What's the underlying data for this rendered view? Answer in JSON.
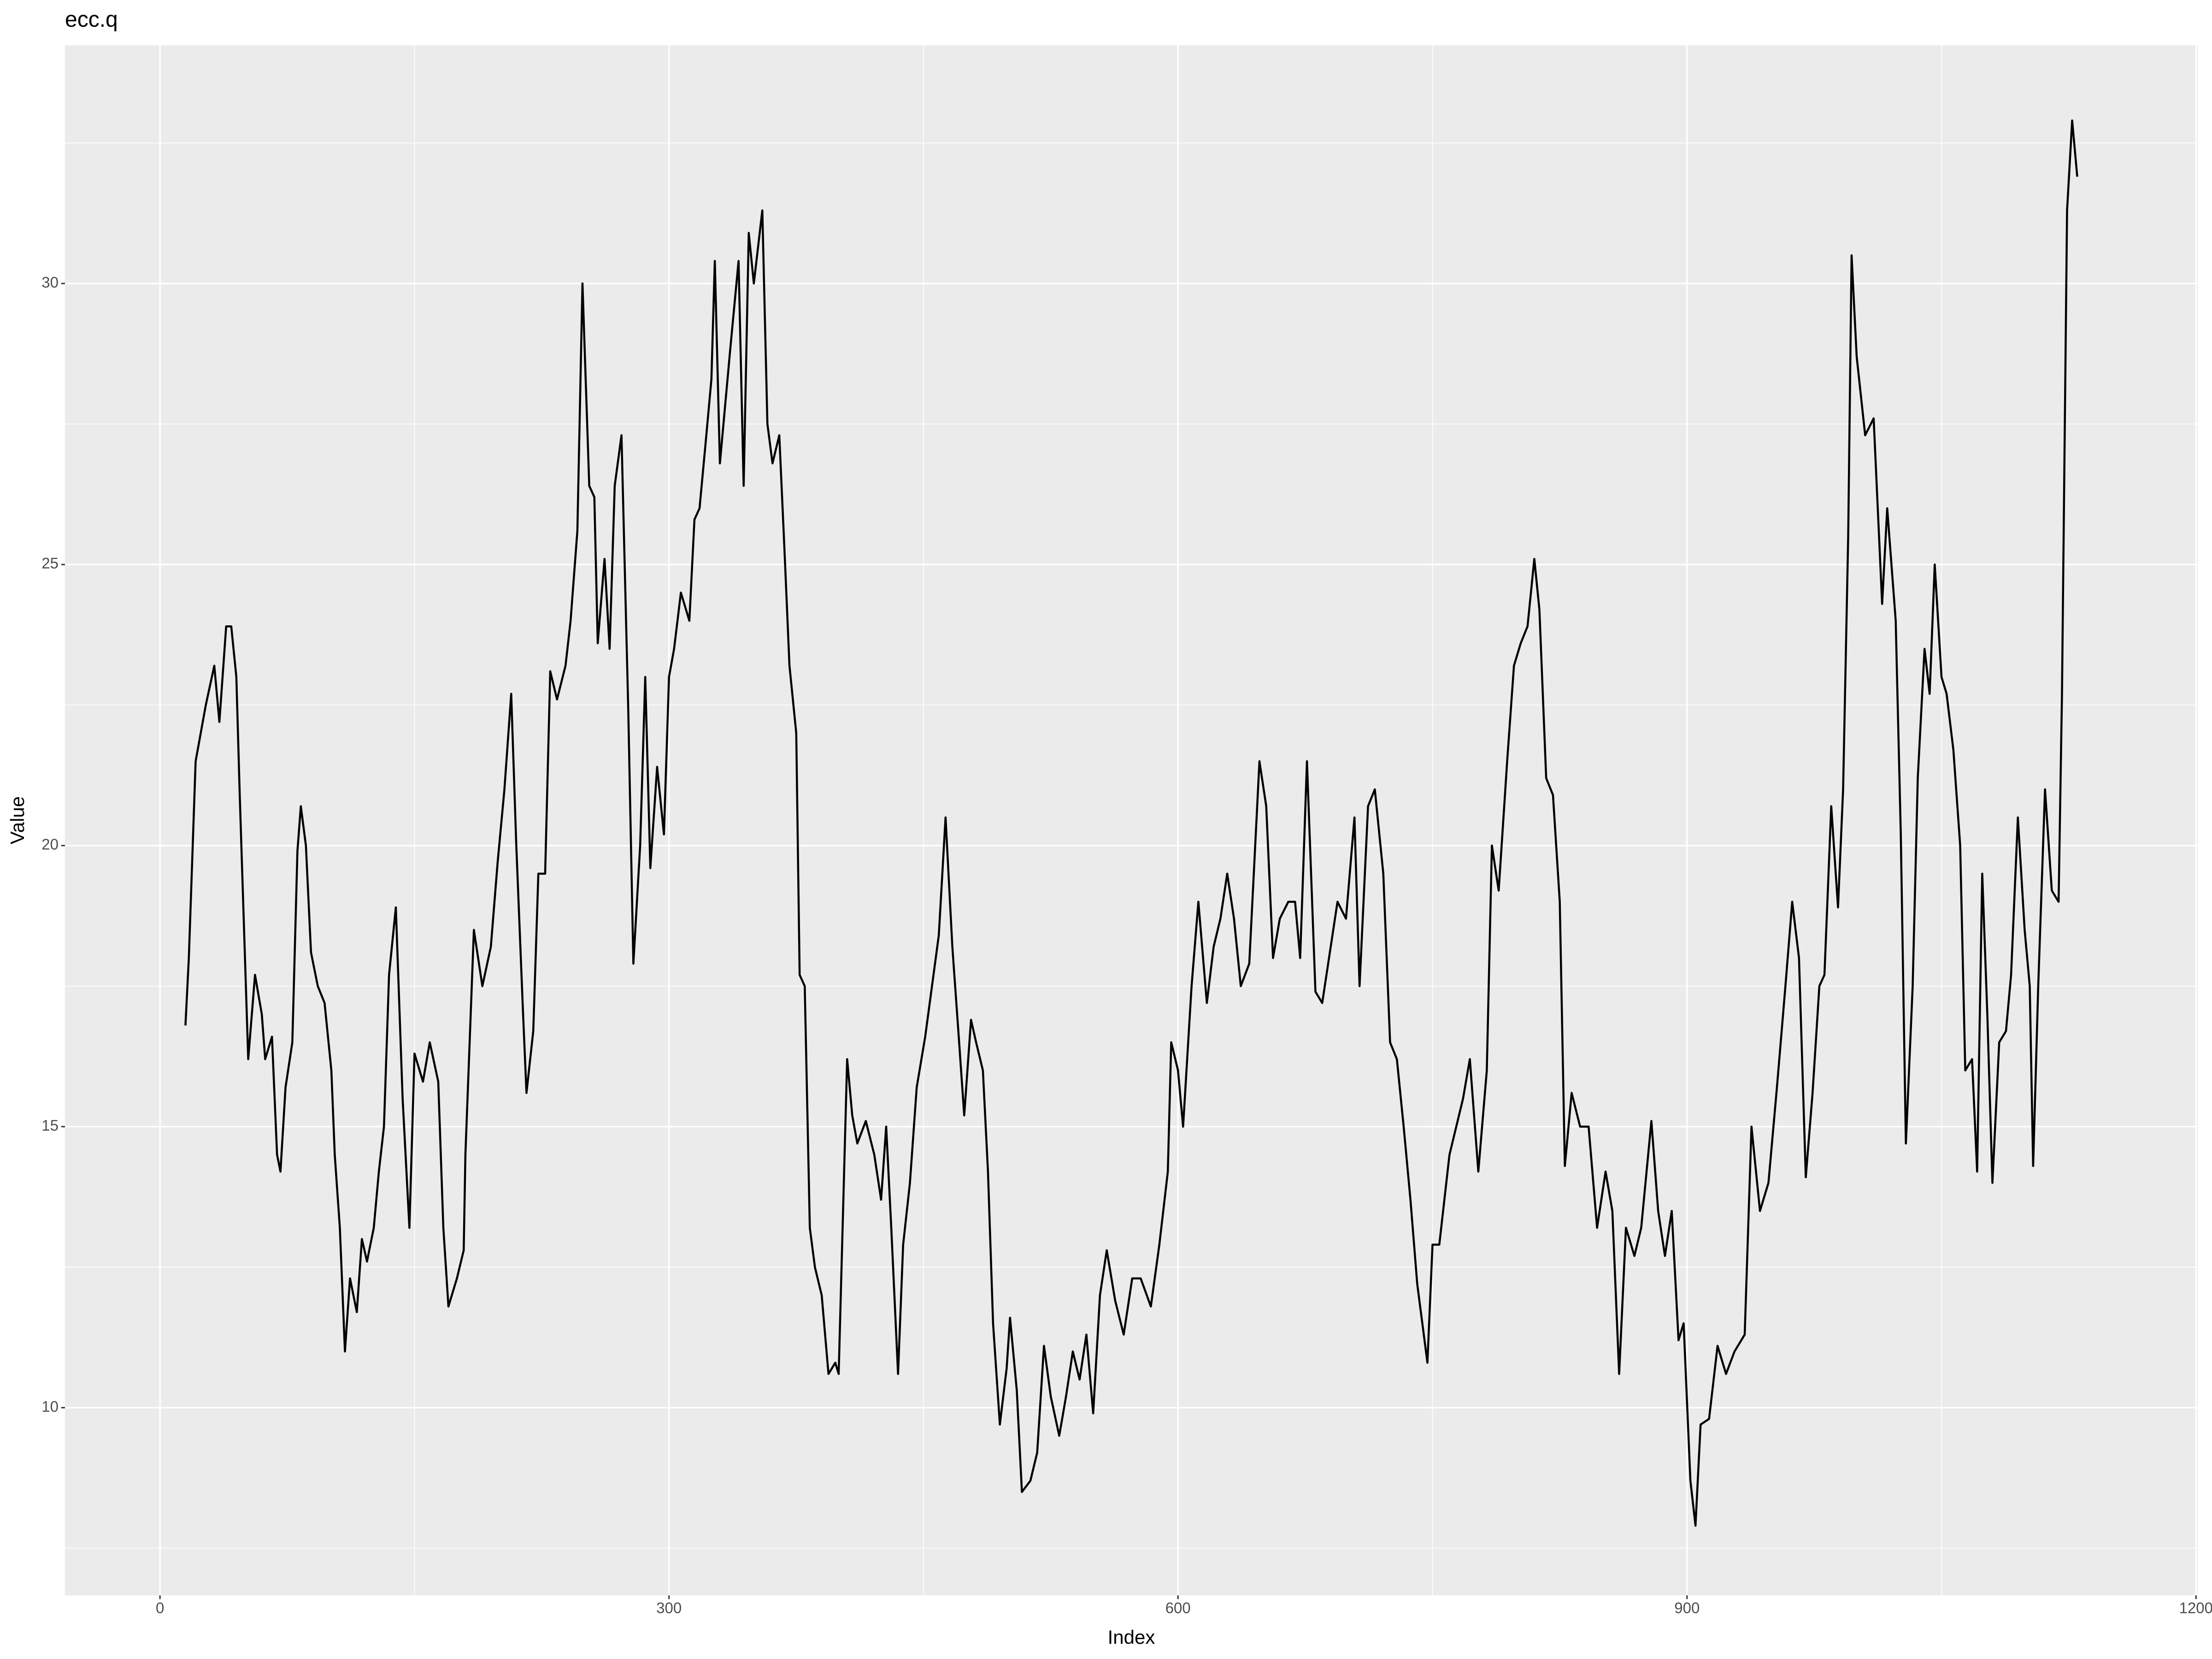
{
  "chart_data": {
    "type": "line",
    "title": "ecc.q",
    "x_label": "Index",
    "y_label": "Value",
    "xlim": [
      -56,
      1201
    ],
    "ylim": [
      6.66,
      34.24
    ],
    "xticks": [
      0,
      300,
      600,
      900,
      1200
    ],
    "yticks": [
      10,
      15,
      20,
      25,
      30
    ],
    "x_minor_ticks": [
      150,
      450,
      750,
      1050
    ],
    "y_minor_ticks": [
      7.5,
      12.5,
      17.5,
      22.5,
      27.5,
      32.5
    ],
    "grid": true,
    "color": "#000000",
    "x": [
      15,
      17,
      21,
      27,
      32,
      35,
      39,
      42,
      45,
      47,
      52,
      56,
      60,
      62,
      66,
      69,
      71,
      74,
      78,
      81,
      83,
      86,
      89,
      93,
      97,
      101,
      103,
      106,
      109,
      112,
      116,
      119,
      122,
      126,
      129,
      132,
      135,
      139,
      143,
      147,
      150,
      155,
      159,
      164,
      167,
      170,
      175,
      179,
      180,
      185,
      190,
      195,
      199,
      203,
      207,
      210,
      214,
      216,
      220,
      223,
      227,
      230,
      234,
      239,
      242,
      246,
      249,
      253,
      256,
      258,
      262,
      265,
      268,
      272,
      276,
      279,
      283,
      286,
      289,
      293,
      297,
      300,
      303,
      307,
      312,
      315,
      318,
      322,
      325,
      327,
      330,
      333,
      336,
      341,
      344,
      347,
      350,
      355,
      358,
      361,
      365,
      368,
      371,
      375,
      377,
      380,
      383,
      386,
      390,
      394,
      398,
      400,
      405,
      408,
      411,
      416,
      421,
      425,
      428,
      431,
      435,
      438,
      442,
      446,
      451,
      455,
      459,
      463,
      467,
      471,
      474,
      478,
      481,
      485,
      488,
      491,
      495,
      499,
      501,
      505,
      508,
      513,
      517,
      521,
      525,
      530,
      534,
      538,
      542,
      546,
      550,
      554,
      558,
      563,
      568,
      573,
      578,
      584,
      589,
      594,
      596,
      600,
      603,
      608,
      612,
      617,
      621,
      625,
      629,
      633,
      637,
      642,
      648,
      652,
      656,
      660,
      665,
      669,
      672,
      676,
      681,
      685,
      689,
      694,
      699,
      704,
      707,
      712,
      716,
      721,
      725,
      729,
      733,
      737,
      741,
      747,
      750,
      754,
      760,
      764,
      768,
      772,
      777,
      782,
      785,
      789,
      794,
      798,
      802,
      806,
      810,
      813,
      817,
      821,
      825,
      828,
      832,
      837,
      842,
      847,
      852,
      856,
      860,
      864,
      869,
      873,
      879,
      883,
      887,
      891,
      895,
      898,
      902,
      905,
      908,
      913,
      918,
      923,
      928,
      934,
      938,
      943,
      948,
      953,
      958,
      962,
      966,
      970,
      974,
      978,
      981,
      985,
      989,
      992,
      995,
      997,
      1000,
      1005,
      1010,
      1015,
      1018,
      1023,
      1026,
      1029,
      1033,
      1036,
      1040,
      1043,
      1046,
      1050,
      1053,
      1057,
      1061,
      1064,
      1068,
      1071,
      1074,
      1077,
      1080,
      1084,
      1088,
      1091,
      1095,
      1099,
      1102,
      1104,
      1107,
      1111,
      1115,
      1119,
      1121,
      1124,
      1127,
      1130
    ],
    "values": [
      16.8,
      18.0,
      21.5,
      22.5,
      23.2,
      22.2,
      23.9,
      23.9,
      23.0,
      20.9,
      16.2,
      17.7,
      17.0,
      16.2,
      16.6,
      14.5,
      14.2,
      15.7,
      16.5,
      19.9,
      20.7,
      20.0,
      18.1,
      17.5,
      17.2,
      16.0,
      14.5,
      13.2,
      11.0,
      12.3,
      11.7,
      13.0,
      12.6,
      13.2,
      14.2,
      15.0,
      17.7,
      18.9,
      15.5,
      13.2,
      16.3,
      15.8,
      16.5,
      15.8,
      13.2,
      11.8,
      12.3,
      12.8,
      14.5,
      18.5,
      17.5,
      18.2,
      19.7,
      21.0,
      22.7,
      20.0,
      17.0,
      15.6,
      16.7,
      19.5,
      19.5,
      23.1,
      22.6,
      23.2,
      24.0,
      25.6,
      30.0,
      26.4,
      26.2,
      23.6,
      25.1,
      23.5,
      26.4,
      27.3,
      22.4,
      17.9,
      20.0,
      23.0,
      19.6,
      21.4,
      20.2,
      23.0,
      23.5,
      24.5,
      24.0,
      25.8,
      26.0,
      27.3,
      28.3,
      30.4,
      26.8,
      27.8,
      28.8,
      30.4,
      26.4,
      30.9,
      30.0,
      31.3,
      27.5,
      26.8,
      27.3,
      25.3,
      23.2,
      22.0,
      17.7,
      17.5,
      13.2,
      12.5,
      12.0,
      10.6,
      10.8,
      10.6,
      16.2,
      15.2,
      14.7,
      15.1,
      14.5,
      13.7,
      15.0,
      13.2,
      10.6,
      12.9,
      14.0,
      15.7,
      16.6,
      17.5,
      18.4,
      20.5,
      18.2,
      16.5,
      15.2,
      16.9,
      16.5,
      16.0,
      14.2,
      11.5,
      9.7,
      10.7,
      11.6,
      10.3,
      8.5,
      8.7,
      9.2,
      11.1,
      10.2,
      9.5,
      10.2,
      11.0,
      10.5,
      11.3,
      9.9,
      12.0,
      12.8,
      11.9,
      11.3,
      12.3,
      12.3,
      11.8,
      12.9,
      14.2,
      16.5,
      16.0,
      15.0,
      17.5,
      19.0,
      17.2,
      18.2,
      18.7,
      19.5,
      18.7,
      17.5,
      17.9,
      21.5,
      20.7,
      18.0,
      18.7,
      19.0,
      19.0,
      18.0,
      21.5,
      17.4,
      17.2,
      18.0,
      19.0,
      18.7,
      20.5,
      17.5,
      20.7,
      21.0,
      19.5,
      16.5,
      16.2,
      15.0,
      13.7,
      12.2,
      10.8,
      12.9,
      12.9,
      14.5,
      15.0,
      15.5,
      16.2,
      14.2,
      16.0,
      20.0,
      19.2,
      21.5,
      23.2,
      23.6,
      23.9,
      25.1,
      24.2,
      21.2,
      20.9,
      19.0,
      14.3,
      15.6,
      15.0,
      15.0,
      13.2,
      14.2,
      13.5,
      10.6,
      13.2,
      12.7,
      13.2,
      15.1,
      13.5,
      12.7,
      13.5,
      11.2,
      11.5,
      8.7,
      7.9,
      9.7,
      9.8,
      11.1,
      10.6,
      11.0,
      11.3,
      15.0,
      13.5,
      14.0,
      15.7,
      17.5,
      19.0,
      18.0,
      14.1,
      15.6,
      17.5,
      17.7,
      20.7,
      18.9,
      21.0,
      25.5,
      30.5,
      28.7,
      27.3,
      27.6,
      24.3,
      26.0,
      24.0,
      20.2,
      14.7,
      17.5,
      21.2,
      23.5,
      22.7,
      25.0,
      23.0,
      22.7,
      21.7,
      20.0,
      16.0,
      16.2,
      14.2,
      19.5,
      17.0,
      14.0,
      16.5,
      16.7,
      17.7,
      20.5,
      18.5,
      17.5,
      14.3,
      17.5,
      21.0,
      19.2,
      19.0,
      22.7,
      31.3,
      32.9,
      31.9
    ]
  }
}
